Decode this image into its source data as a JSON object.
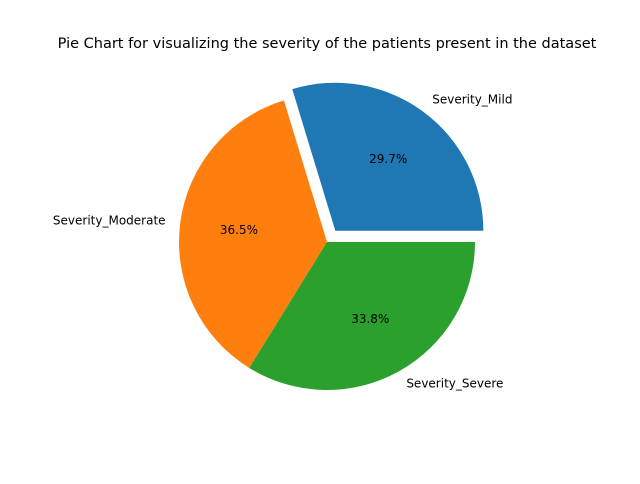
{
  "chart_data": {
    "type": "pie",
    "title": "Pie Chart for visualizing the severity of the patients present in the dataset",
    "categories": [
      "Severity_Mild",
      "Severity_Moderate",
      "Severity_Severe"
    ],
    "values": [
      29.7,
      36.5,
      33.8
    ],
    "percent_labels": [
      "29.7%",
      "36.5%",
      "33.8%"
    ],
    "colors": [
      "#1f77b4",
      "#ff7f0e",
      "#2ca02c"
    ],
    "exploded": [
      true,
      false,
      false
    ],
    "start_angle_deg": 0,
    "direction": "counterclockwise",
    "legend": "none"
  }
}
